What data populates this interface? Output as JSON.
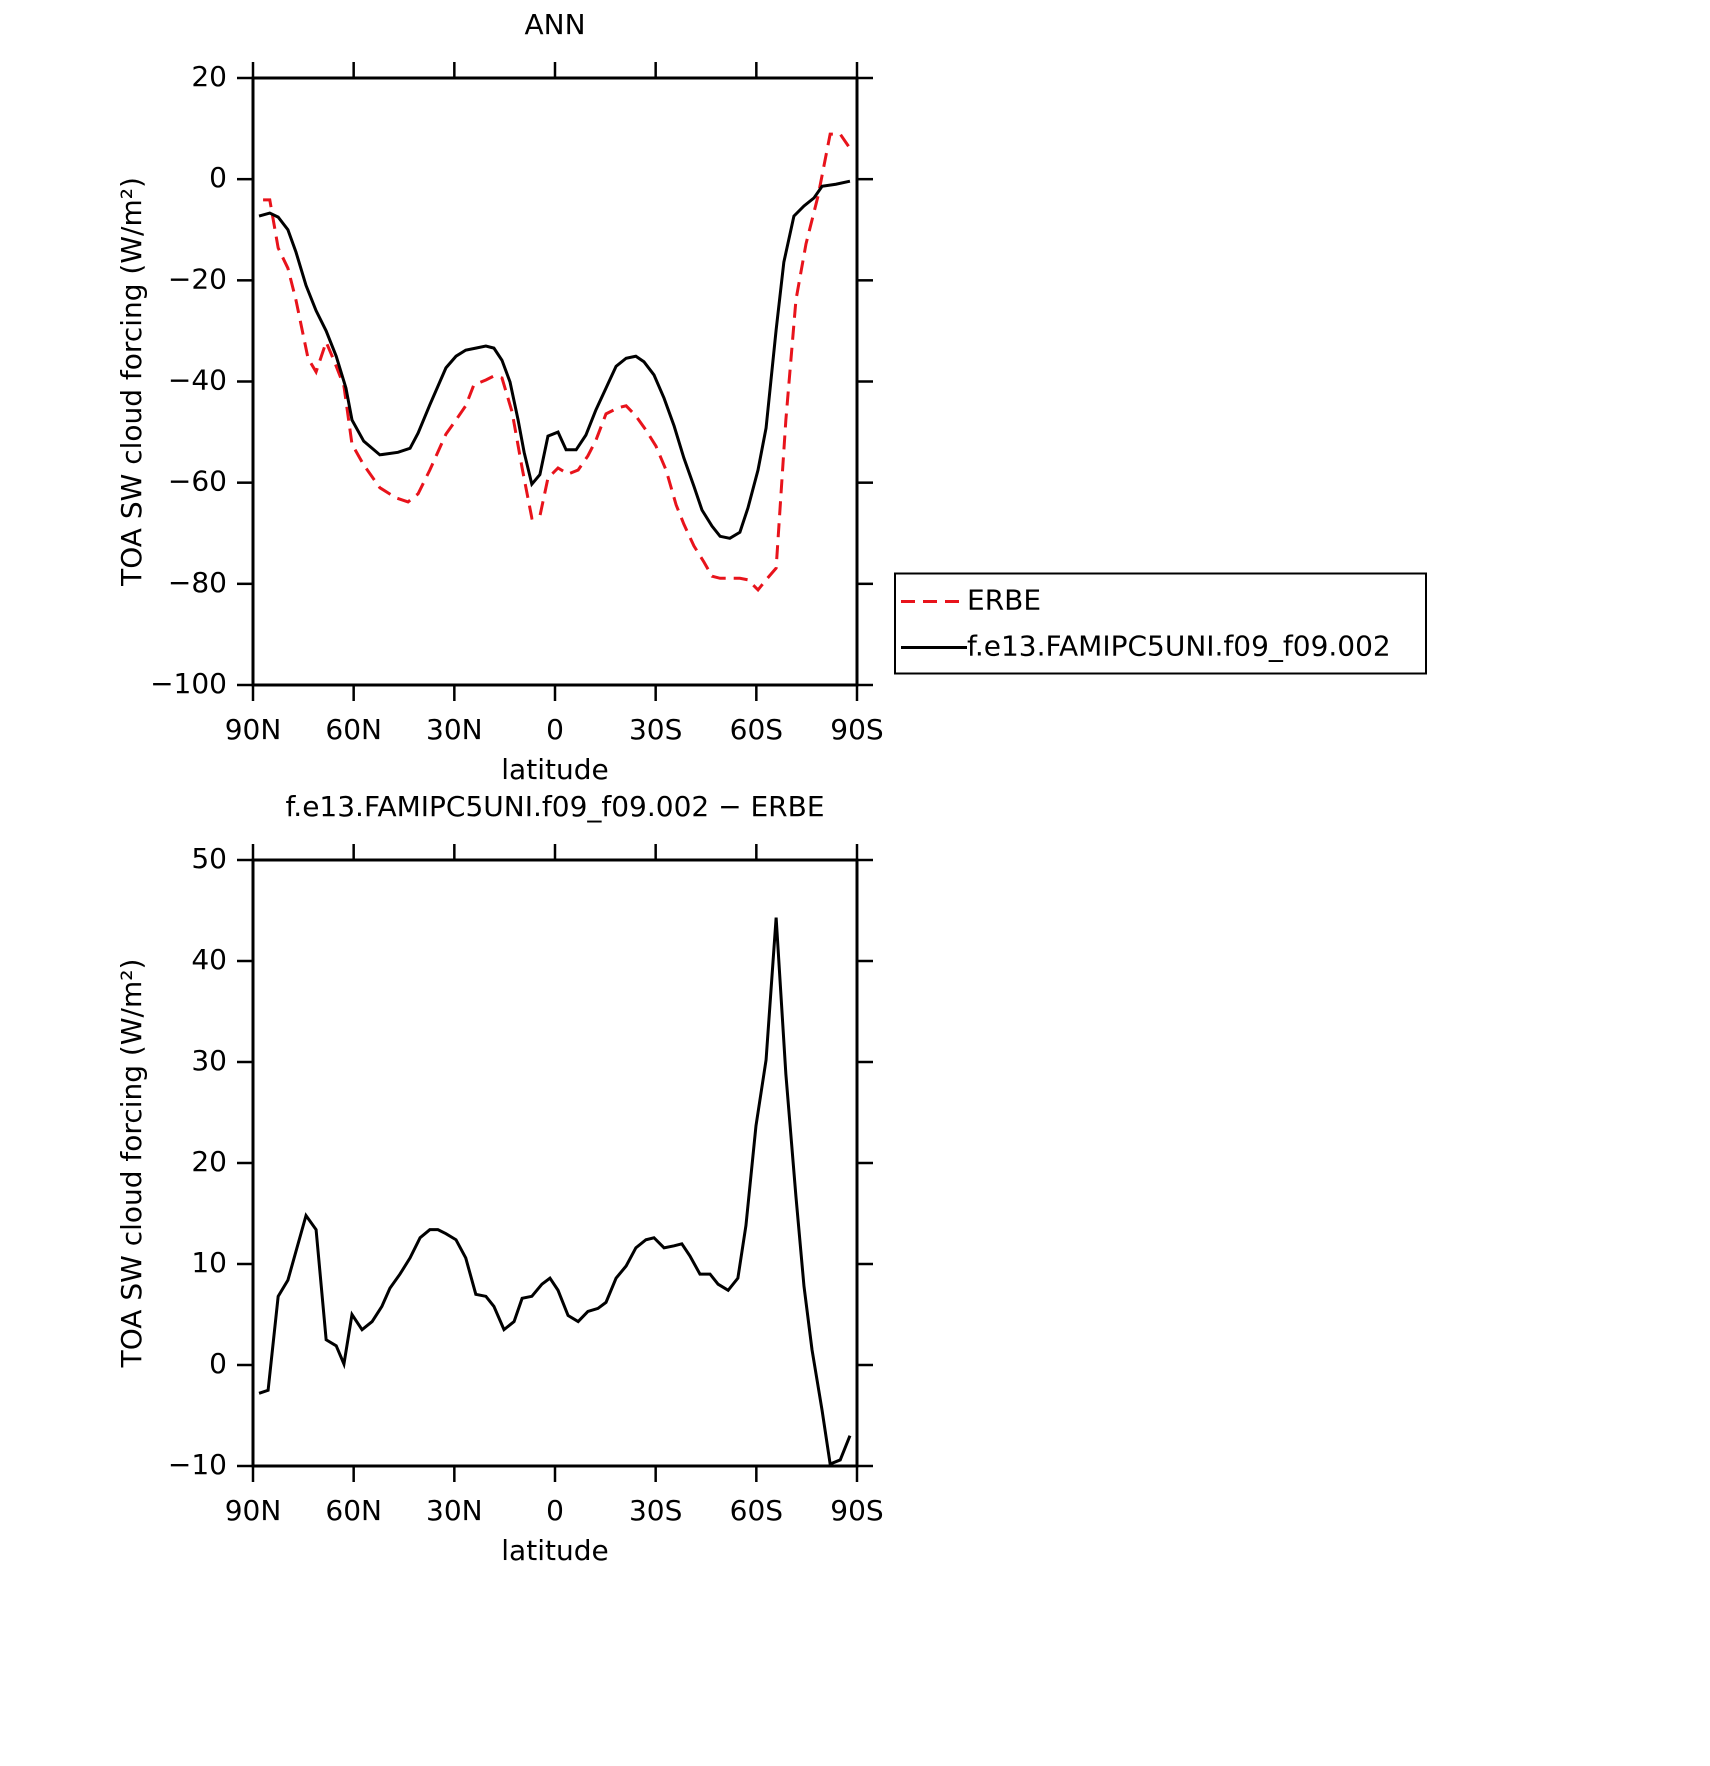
{
  "chart_data": [
    {
      "type": "line",
      "title": "ANN",
      "xlabel": "latitude",
      "ylabel": "TOA SW cloud forcing (W/m²)",
      "xlim": [
        90,
        -90
      ],
      "ylim": [
        -100,
        20
      ],
      "xticks": [
        {
          "value": 90,
          "label": "90N"
        },
        {
          "value": 60,
          "label": "60N"
        },
        {
          "value": 30,
          "label": "30N"
        },
        0,
        {
          "value": -30,
          "label": "30S"
        },
        {
          "value": -60,
          "label": "60S"
        },
        {
          "value": -90,
          "label": "90S"
        }
      ],
      "yticks": [
        {
          "value": -100,
          "label": "−100"
        },
        {
          "value": -80,
          "label": "−80"
        },
        {
          "value": -60,
          "label": "−60"
        },
        {
          "value": -40,
          "label": "−40"
        },
        {
          "value": -20,
          "label": "−20"
        },
        0,
        20
      ],
      "legend": "outside-right",
      "series": [
        {
          "name": "ERBE",
          "color": "#e8131b",
          "dash": true,
          "x": [
            87,
            85,
            82.5,
            79.6,
            77.2,
            73.6,
            71.2,
            68.2,
            65.9,
            62.9,
            60.5,
            57,
            52.2,
            47.4,
            43.8,
            40.8,
            37.3,
            32.5,
            29.5,
            26.6,
            24.2,
            20.6,
            18.2,
            15.8,
            12.8,
            9.8,
            6.9,
            4.5,
            2.1,
            -0.9,
            -3.9,
            -6.9,
            -9.8,
            -12.2,
            -15.2,
            -18.8,
            -21.2,
            -24.1,
            -27.1,
            -30.1,
            -33.1,
            -36.1,
            -38.4,
            -41.4,
            -44.4,
            -46.8,
            -49.2,
            -55.1,
            -57.5,
            -60.5,
            -62.9,
            -65.9,
            -68.8,
            -71.8,
            -74.8,
            -78.4,
            -82,
            -85,
            -87.9
          ],
          "values": [
            -4.1,
            -4.1,
            -13.6,
            -17.6,
            -23.9,
            -35.4,
            -38.1,
            -32.2,
            -35.8,
            -40.9,
            -52.4,
            -56.5,
            -61,
            -63,
            -63.8,
            -62.2,
            -57.5,
            -50.4,
            -47.6,
            -44.8,
            -40.7,
            -39.7,
            -38.9,
            -39.3,
            -46,
            -57.1,
            -67,
            -66.6,
            -59.1,
            -57.1,
            -58.3,
            -57.5,
            -54.7,
            -51.6,
            -46.4,
            -45.2,
            -44.8,
            -46.8,
            -49.6,
            -52.8,
            -57.5,
            -64.4,
            -68.2,
            -72.5,
            -75.7,
            -78.5,
            -78.9,
            -78.9,
            -79.2,
            -81.2,
            -79.2,
            -76.9,
            -47.6,
            -23.9,
            -12.8,
            -3.3,
            8.9,
            8.9,
            6.1
          ]
        },
        {
          "name": "f.e13.FAMIPC5UNI.f09_f09.002",
          "color": "#000000",
          "dash": false,
          "x": [
            88.2,
            85,
            82.5,
            79.6,
            77.2,
            74.2,
            71.2,
            68.2,
            65.2,
            62.3,
            60.5,
            57,
            52.2,
            46.8,
            43.2,
            40.8,
            37.3,
            32.5,
            29.5,
            26.6,
            23.6,
            20.6,
            18.2,
            15.8,
            13.4,
            11,
            9.2,
            6.9,
            4.5,
            2.1,
            -0.9,
            -3.3,
            -6.3,
            -9.2,
            -12.2,
            -15.2,
            -18.2,
            -21.2,
            -24.1,
            -26.5,
            -29.5,
            -32.5,
            -35.5,
            -38.4,
            -41.4,
            -43.8,
            -46.8,
            -49.2,
            -52.1,
            -55.1,
            -57.5,
            -60.5,
            -62.9,
            -65.9,
            -68.2,
            -71.2,
            -74.2,
            -77.2,
            -79.6,
            -83.7,
            -87.9
          ],
          "values": [
            -7.3,
            -6.7,
            -7.5,
            -10,
            -14.4,
            -21,
            -26,
            -30,
            -35,
            -41.3,
            -47.6,
            -51.8,
            -54.5,
            -54,
            -53.2,
            -50.2,
            -44.6,
            -37.3,
            -35,
            -33.8,
            -33.4,
            -33,
            -33.4,
            -35.8,
            -40.1,
            -47.6,
            -54,
            -60.3,
            -58.4,
            -50.8,
            -50,
            -53.5,
            -53.5,
            -50.6,
            -45.6,
            -41.3,
            -37,
            -35.4,
            -35,
            -36.1,
            -38.7,
            -43.3,
            -48.8,
            -55.1,
            -60.7,
            -65.4,
            -68.6,
            -70.6,
            -71,
            -69.8,
            -65,
            -57.5,
            -49.2,
            -29.8,
            -16.4,
            -7.3,
            -5.3,
            -3.7,
            -1.4,
            -1,
            -0.4
          ]
        }
      ]
    },
    {
      "type": "line",
      "title": "f.e13.FAMIPC5UNI.f09_f09.002 − ERBE",
      "xlabel": "latitude",
      "ylabel": "TOA SW cloud forcing (W/m²)",
      "xlim": [
        90,
        -90
      ],
      "ylim": [
        -10,
        50
      ],
      "xticks": [
        {
          "value": 90,
          "label": "90N"
        },
        {
          "value": 60,
          "label": "60N"
        },
        {
          "value": 30,
          "label": "30N"
        },
        0,
        {
          "value": -30,
          "label": "30S"
        },
        {
          "value": -60,
          "label": "60S"
        },
        {
          "value": -90,
          "label": "90S"
        }
      ],
      "yticks": [
        {
          "value": -10,
          "label": "−10"
        },
        0,
        10,
        20,
        30,
        40,
        50
      ],
      "series": [
        {
          "color": "#000000",
          "dash": false,
          "x": [
            88.2,
            85.5,
            82.5,
            79.6,
            74.2,
            71.2,
            68.2,
            65.2,
            62.9,
            60.5,
            57.5,
            54.5,
            51.6,
            49.2,
            46.2,
            43.2,
            40.2,
            37.3,
            34.9,
            32.5,
            29.5,
            26.6,
            23.6,
            20.6,
            18.2,
            15.2,
            12.2,
            9.8,
            6.9,
            3.9,
            1.5,
            -0.9,
            -3.9,
            -6.9,
            -9.8,
            -12.8,
            -15.2,
            -18.2,
            -21.2,
            -24.1,
            -27.1,
            -29.5,
            -32.5,
            -35.5,
            -37.8,
            -40.2,
            -43.2,
            -46.2,
            -48.6,
            -51.6,
            -54.5,
            -56.9,
            -59.9,
            -62.9,
            -65.9,
            -68.8,
            -71.8,
            -74.2,
            -76.6,
            -79.6,
            -82,
            -85,
            -87.9
          ],
          "values": [
            -2.8,
            -2.5,
            6.8,
            8.4,
            14.8,
            13.4,
            2.5,
            1.9,
            0.1,
            5,
            3.5,
            4.3,
            5.8,
            7.6,
            9,
            10.6,
            12.6,
            13.4,
            13.4,
            13,
            12.4,
            10.6,
            7,
            6.8,
            5.8,
            3.5,
            4.3,
            6.6,
            6.8,
            8,
            8.6,
            7.4,
            4.9,
            4.3,
            5.3,
            5.6,
            6.2,
            8.6,
            9.8,
            11.6,
            12.4,
            12.6,
            11.6,
            11.8,
            12,
            10.8,
            9,
            9,
            8,
            7.4,
            8.6,
            13.8,
            23.7,
            30.2,
            44.3,
            28.8,
            16.7,
            7.8,
            1.5,
            -4.5,
            -9.8,
            -9.4,
            -7
          ]
        }
      ]
    }
  ]
}
